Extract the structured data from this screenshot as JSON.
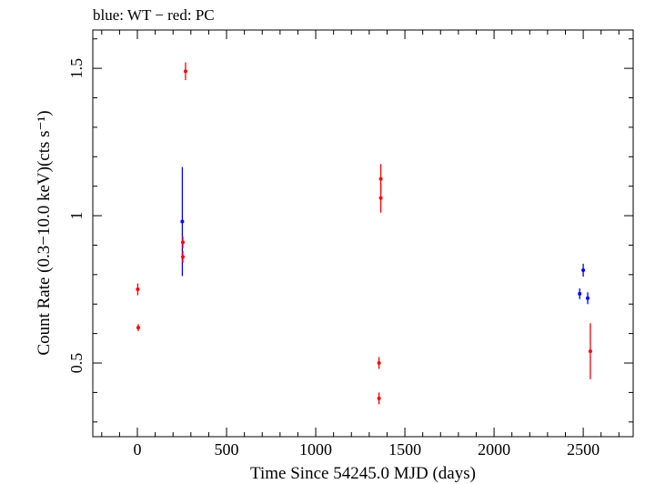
{
  "chart_data": {
    "type": "scatter",
    "title": "blue: WT − red: PC",
    "xlabel": "Time Since 54245.0 MJD (days)",
    "ylabel": "Count Rate (0.3−10.0 keV)(cts s⁻¹)",
    "xlim": [
      -250,
      2780
    ],
    "ylim": [
      0.25,
      1.63
    ],
    "xticks": [
      {
        "value": 0,
        "label": "0"
      },
      {
        "value": 500,
        "label": "500"
      },
      {
        "value": 1000,
        "label": "1000"
      },
      {
        "value": 1500,
        "label": "1500"
      },
      {
        "value": 2000,
        "label": "2000"
      },
      {
        "value": 2500,
        "label": "2500"
      }
    ],
    "yticks": [
      {
        "value": 0.5,
        "label": "0.5"
      },
      {
        "value": 1,
        "label": "1"
      },
      {
        "value": 1.5,
        "label": "1.5"
      }
    ],
    "grid": false,
    "series": [
      {
        "mode": "WT",
        "color": "#0000ff",
        "points": [
          {
            "x": 252,
            "y": 0.98,
            "yerr": 0.185
          },
          {
            "x": 2480,
            "y": 0.735,
            "yerr": 0.018
          },
          {
            "x": 2500,
            "y": 0.815,
            "yerr": 0.022
          },
          {
            "x": 2525,
            "y": 0.72,
            "yerr": 0.02
          }
        ]
      },
      {
        "mode": "PC",
        "color": "#ff0000",
        "points": [
          {
            "x": 2,
            "y": 0.75,
            "yerr": 0.02
          },
          {
            "x": 5,
            "y": 0.62,
            "yerr": 0.012
          },
          {
            "x": 255,
            "y": 0.91,
            "yerr": 0.02
          },
          {
            "x": 255,
            "y": 0.86,
            "yerr": 0.02
          },
          {
            "x": 270,
            "y": 1.49,
            "yerr": 0.03
          },
          {
            "x": 1355,
            "y": 0.5,
            "yerr": 0.02
          },
          {
            "x": 1355,
            "y": 0.38,
            "yerr": 0.02
          },
          {
            "x": 1365,
            "y": 1.125,
            "yerr": 0.05
          },
          {
            "x": 1365,
            "y": 1.06,
            "yerr": 0.05
          },
          {
            "x": 2540,
            "y": 0.54,
            "yerr": 0.095
          }
        ]
      }
    ]
  }
}
